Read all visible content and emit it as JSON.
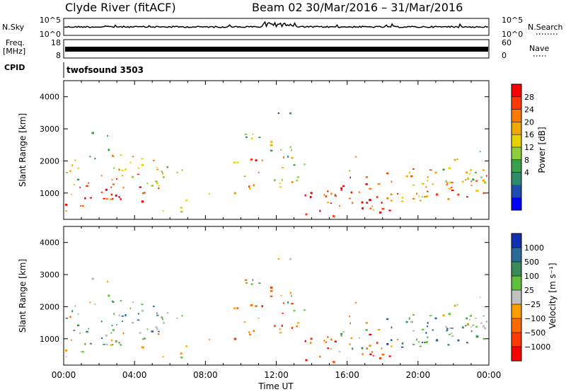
{
  "header": {
    "title": "Clyde River (fitACF)",
    "beam": "Beam 02",
    "date_range": "30/Mar/2016 – 31/Mar/2016"
  },
  "noise_panel": {
    "left_label": "N.Sky",
    "right_label": "N.Search",
    "left_ticks": [
      "10^5",
      "10^0"
    ],
    "right_ticks": [
      "10^5",
      "10^0"
    ]
  },
  "freq_panel": {
    "left_label_1": "Freq.",
    "left_label_2": "[MHz]",
    "right_label": "Nave",
    "left_ticks": [
      "18",
      "8"
    ],
    "right_ticks": [
      "60",
      "0"
    ],
    "freq_mhz": 10.5
  },
  "cpid_panel": {
    "label": "CPID",
    "program": "twofsound 3503"
  },
  "chart_data": [
    {
      "type": "heatmap",
      "quantity": "power",
      "ylabel": "Slant Range [km]",
      "yticks": [
        "1000",
        "2000",
        "3000",
        "4000"
      ],
      "ylim": [
        180,
        4500
      ],
      "x_ticks": [
        "00:00",
        "04:00",
        "08:00",
        "12:00",
        "16:00",
        "20:00",
        "00:00"
      ],
      "xlim_hours": [
        0,
        24
      ],
      "colorbar_label": "Power [dB]",
      "colorbar_ticks": [
        "28",
        "24",
        "20",
        "16",
        "12",
        "8",
        "4"
      ],
      "colorbar_colors": [
        "#ff0000",
        "#ff3a00",
        "#ff7a00",
        "#f0a800",
        "#e6d200",
        "#8ccf3a",
        "#3aa04a",
        "#2e8a6a",
        "#1e4fb0",
        "#0000ff"
      ]
    },
    {
      "type": "heatmap",
      "quantity": "velocity",
      "ylabel": "Slant Range [km]",
      "yticks": [
        "1000",
        "2000",
        "3000",
        "4000"
      ],
      "ylim": [
        180,
        4500
      ],
      "x_ticks": [
        "00:00",
        "04:00",
        "08:00",
        "12:00",
        "16:00",
        "20:00",
        "00:00"
      ],
      "xlabel": "Time UT",
      "xlim_hours": [
        0,
        24
      ],
      "colorbar_label": "Velocity [m s⁻¹]",
      "colorbar_ticks": [
        "1000",
        "500",
        "100",
        "25",
        "−25",
        "−100",
        "−500",
        "−1000"
      ],
      "colorbar_colors": [
        "#1030b0",
        "#2a6a9a",
        "#3a8a5a",
        "#5fbf3a",
        "#c0c0c0",
        "#ff9c00",
        "#ff6a00",
        "#ff3a00",
        "#ff0000"
      ]
    }
  ]
}
